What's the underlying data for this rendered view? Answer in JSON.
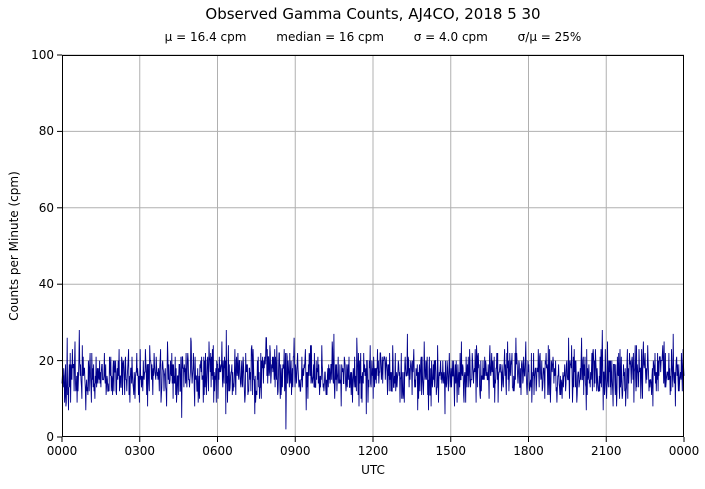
{
  "chart_data": {
    "type": "line",
    "title": "Observed Gamma Counts, AJ4CO, 2018 5 30",
    "stats_text": {
      "mu": "μ = 16.4 cpm",
      "median": "median = 16 cpm",
      "sigma": "σ = 4.0 cpm",
      "ratio": "σ/μ = 25%"
    },
    "xlabel": "UTC",
    "ylabel": "Counts per Minute (cpm)",
    "ylim": [
      0,
      100
    ],
    "yticks": [
      0,
      20,
      40,
      60,
      80,
      100
    ],
    "xlim_minutes": [
      0,
      1440
    ],
    "xticks_minutes": [
      0,
      180,
      360,
      540,
      720,
      900,
      1080,
      1260,
      1440
    ],
    "xtick_labels": [
      "0000",
      "0300",
      "0600",
      "0900",
      "1200",
      "1500",
      "1800",
      "2100",
      "0000"
    ],
    "grid": true,
    "grid_color": "#b0b0b0",
    "axis_color": "#000000",
    "background_color": "#ffffff",
    "series": [
      {
        "name": "observed-gamma-counts",
        "color": "#00008b",
        "n_points": 1440,
        "sampling": "one count-rate sample per minute over 24 h UTC",
        "mean_cpm": 16.4,
        "median_cpm": 16,
        "sigma_cpm": 4.0,
        "observed_min_cpm": 4,
        "observed_max_cpm": 31,
        "distribution": "poisson-like noise around mean",
        "seed": 20180530
      }
    ]
  }
}
